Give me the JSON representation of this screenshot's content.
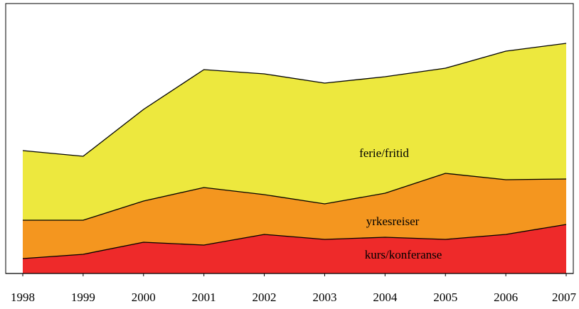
{
  "chart_data": {
    "type": "stacked_area",
    "categories": [
      "1998",
      "1999",
      "2000",
      "2001",
      "2002",
      "2003",
      "2004",
      "2005",
      "2006",
      "2007"
    ],
    "series": [
      {
        "name": "kurs/konferanse",
        "color": "#ee2a2a",
        "values": [
          21,
          27,
          44,
          40,
          55,
          48,
          51,
          48,
          55,
          69
        ]
      },
      {
        "name": "yrkesreiser",
        "color": "#f4961f",
        "values": [
          54,
          48,
          58,
          81,
          56,
          50,
          62,
          93,
          77,
          64
        ]
      },
      {
        "name": "ferie/fritid",
        "color": "#ede83e",
        "values": [
          98,
          90,
          129,
          166,
          170,
          170,
          164,
          148,
          181,
          191
        ]
      }
    ],
    "ylim": [
      0,
      380
    ]
  }
}
